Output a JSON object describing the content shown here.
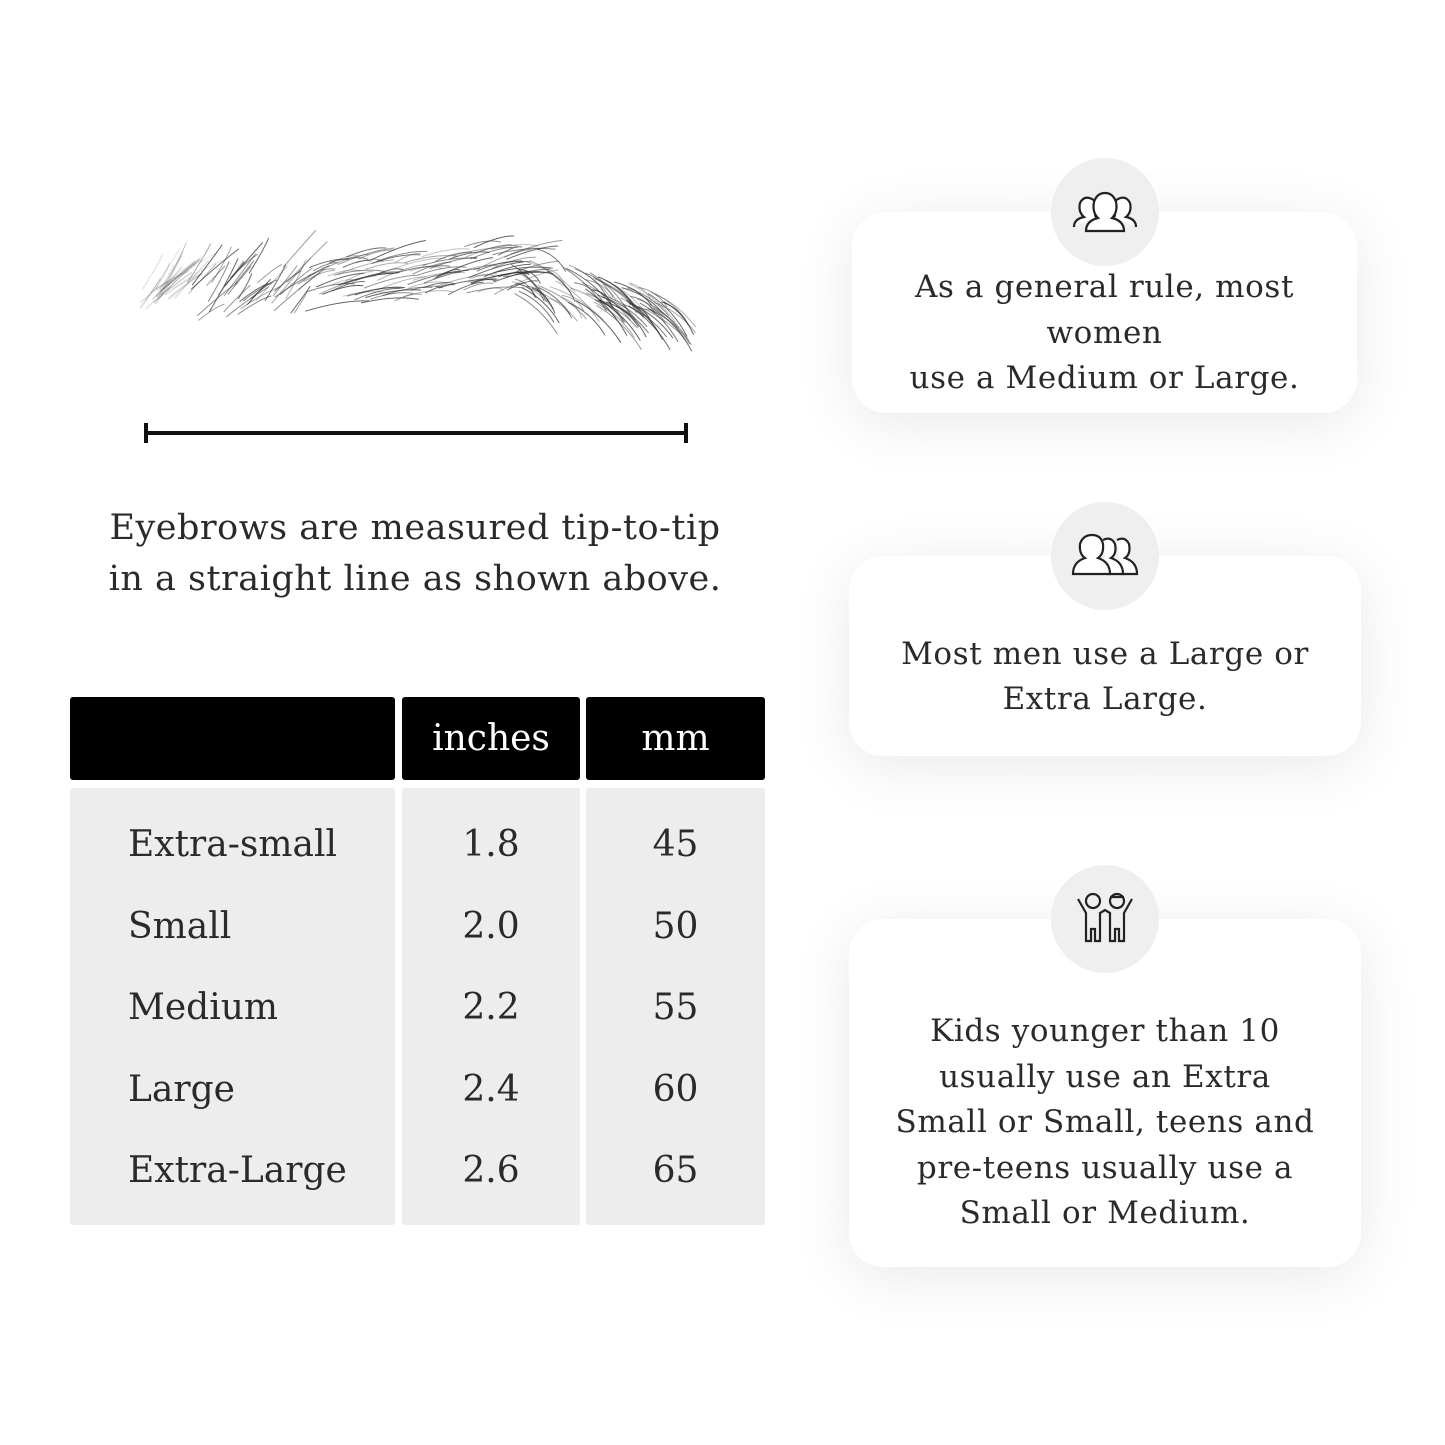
{
  "caption": {
    "line1": "Eyebrows are measured tip-to-tip",
    "line2": "in a straight line as shown above."
  },
  "table": {
    "headers": [
      "",
      "inches",
      "mm"
    ],
    "rows": [
      {
        "size": "Extra-small",
        "inches": "1.8",
        "mm": "45"
      },
      {
        "size": "Small",
        "inches": "2.0",
        "mm": "50"
      },
      {
        "size": "Medium",
        "inches": "2.2",
        "mm": "55"
      },
      {
        "size": "Large",
        "inches": "2.4",
        "mm": "60"
      },
      {
        "size": "Extra-Large",
        "inches": "2.6",
        "mm": "65"
      }
    ]
  },
  "cards": [
    {
      "icon": "women-group-icon",
      "lines": [
        "As a general rule, most women",
        "use a Medium or Large."
      ]
    },
    {
      "icon": "men-group-icon",
      "lines": [
        "Most men use a Large or",
        "Extra Large."
      ]
    },
    {
      "icon": "kids-icon",
      "lines": [
        "Kids younger than 10",
        "usually use an Extra",
        "Small or Small, teens and",
        "pre-teens usually use a",
        "Small or Medium."
      ]
    }
  ]
}
